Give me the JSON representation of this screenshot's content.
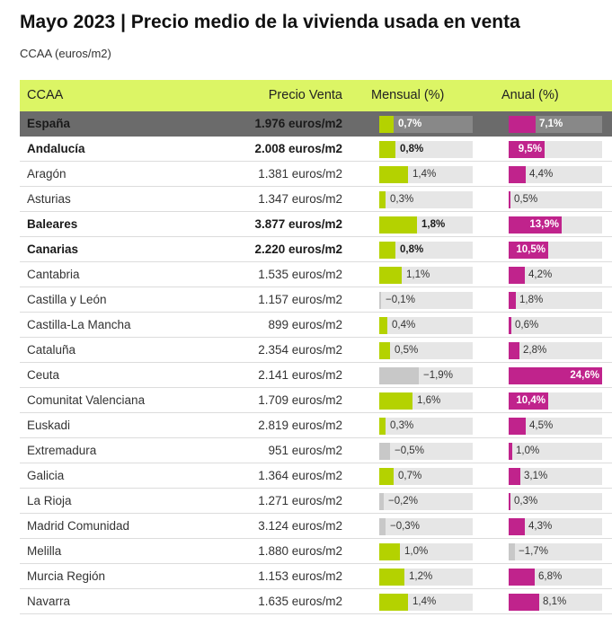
{
  "title": "Mayo 2023 | Precio medio de la vivienda usada en venta",
  "subtitle": "CCAA (euros/m2)",
  "colors": {
    "header_bg": "#dcf565",
    "mensual_bar": "#b4d200",
    "anual_bar": "#c0238c",
    "negative_bar": "#c8c8c8",
    "highlight_row": "#6b6b6b"
  },
  "chart_data": {
    "type": "table",
    "columns": [
      "CCAA",
      "Precio Venta",
      "Mensual (%)",
      "Anual (%)"
    ],
    "rows": [
      {
        "ccaa": "España",
        "precio": "1.976 euros/m2",
        "mensual": 0.7,
        "mensual_label": "0,7%",
        "anual": 7.1,
        "anual_label": "7,1%",
        "highlight": true,
        "bold": true
      },
      {
        "ccaa": "Andalucía",
        "precio": "2.008 euros/m2",
        "mensual": 0.8,
        "mensual_label": "0,8%",
        "anual": 9.5,
        "anual_label": "9,5%",
        "bold": true
      },
      {
        "ccaa": "Aragón",
        "precio": "1.381 euros/m2",
        "mensual": 1.4,
        "mensual_label": "1,4%",
        "anual": 4.4,
        "anual_label": "4,4%"
      },
      {
        "ccaa": "Asturias",
        "precio": "1.347 euros/m2",
        "mensual": 0.3,
        "mensual_label": "0,3%",
        "anual": 0.5,
        "anual_label": "0,5%"
      },
      {
        "ccaa": "Baleares",
        "precio": "3.877 euros/m2",
        "mensual": 1.8,
        "mensual_label": "1,8%",
        "anual": 13.9,
        "anual_label": "13,9%",
        "bold": true
      },
      {
        "ccaa": "Canarias",
        "precio": "2.220 euros/m2",
        "mensual": 0.8,
        "mensual_label": "0,8%",
        "anual": 10.5,
        "anual_label": "10,5%",
        "bold": true
      },
      {
        "ccaa": "Cantabria",
        "precio": "1.535 euros/m2",
        "mensual": 1.1,
        "mensual_label": "1,1%",
        "anual": 4.2,
        "anual_label": "4,2%"
      },
      {
        "ccaa": "Castilla y León",
        "precio": "1.157 euros/m2",
        "mensual": -0.1,
        "mensual_label": "−0,1%",
        "anual": 1.8,
        "anual_label": "1,8%"
      },
      {
        "ccaa": "Castilla-La Mancha",
        "precio": "899 euros/m2",
        "mensual": 0.4,
        "mensual_label": "0,4%",
        "anual": 0.6,
        "anual_label": "0,6%"
      },
      {
        "ccaa": "Cataluña",
        "precio": "2.354 euros/m2",
        "mensual": 0.5,
        "mensual_label": "0,5%",
        "anual": 2.8,
        "anual_label": "2,8%"
      },
      {
        "ccaa": "Ceuta",
        "precio": "2.141 euros/m2",
        "mensual": -1.9,
        "mensual_label": "−1,9%",
        "anual": 24.6,
        "anual_label": "24,6%"
      },
      {
        "ccaa": "Comunitat Valenciana",
        "precio": "1.709 euros/m2",
        "mensual": 1.6,
        "mensual_label": "1,6%",
        "anual": 10.4,
        "anual_label": "10,4%"
      },
      {
        "ccaa": "Euskadi",
        "precio": "2.819 euros/m2",
        "mensual": 0.3,
        "mensual_label": "0,3%",
        "anual": 4.5,
        "anual_label": "4,5%"
      },
      {
        "ccaa": "Extremadura",
        "precio": "951 euros/m2",
        "mensual": -0.5,
        "mensual_label": "−0,5%",
        "anual": 1.0,
        "anual_label": "1,0%"
      },
      {
        "ccaa": "Galicia",
        "precio": "1.364 euros/m2",
        "mensual": 0.7,
        "mensual_label": "0,7%",
        "anual": 3.1,
        "anual_label": "3,1%"
      },
      {
        "ccaa": "La Rioja",
        "precio": "1.271 euros/m2",
        "mensual": -0.2,
        "mensual_label": "−0,2%",
        "anual": 0.3,
        "anual_label": "0,3%"
      },
      {
        "ccaa": "Madrid Comunidad",
        "precio": "3.124 euros/m2",
        "mensual": -0.3,
        "mensual_label": "−0,3%",
        "anual": 4.3,
        "anual_label": "4,3%"
      },
      {
        "ccaa": "Melilla",
        "precio": "1.880 euros/m2",
        "mensual": 1.0,
        "mensual_label": "1,0%",
        "anual": -1.7,
        "anual_label": "−1,7%"
      },
      {
        "ccaa": "Murcia Región",
        "precio": "1.153 euros/m2",
        "mensual": 1.2,
        "mensual_label": "1,2%",
        "anual": 6.8,
        "anual_label": "6,8%"
      },
      {
        "ccaa": "Navarra",
        "precio": "1.635 euros/m2",
        "mensual": 1.4,
        "mensual_label": "1,4%",
        "anual": 8.1,
        "anual_label": "8,1%"
      }
    ]
  }
}
